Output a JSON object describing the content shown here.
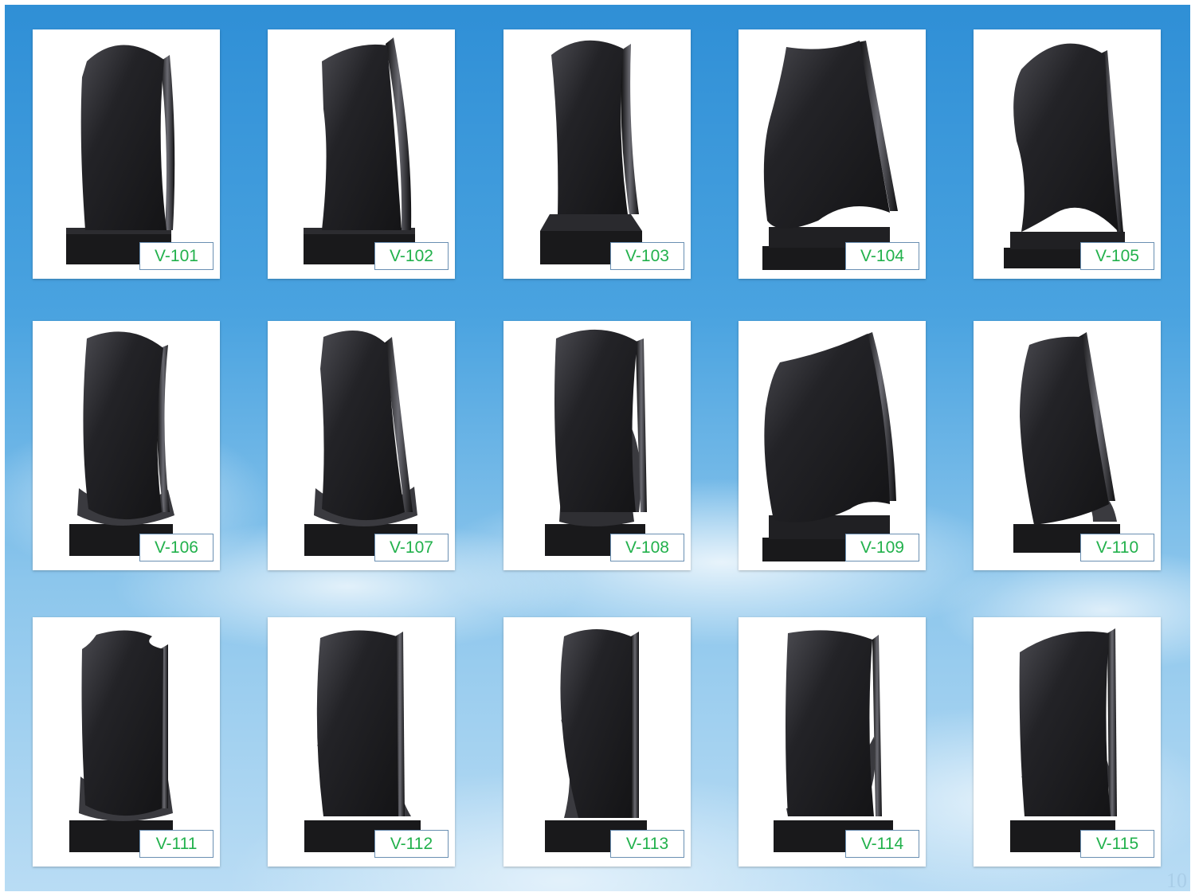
{
  "catalog": {
    "items": [
      {
        "code": "V-101",
        "icon": "headstone-icon"
      },
      {
        "code": "V-102",
        "icon": "headstone-icon"
      },
      {
        "code": "V-103",
        "icon": "headstone-icon"
      },
      {
        "code": "V-104",
        "icon": "headstone-icon"
      },
      {
        "code": "V-105",
        "icon": "headstone-icon"
      },
      {
        "code": "V-106",
        "icon": "headstone-icon"
      },
      {
        "code": "V-107",
        "icon": "headstone-icon"
      },
      {
        "code": "V-108",
        "icon": "headstone-icon"
      },
      {
        "code": "V-109",
        "icon": "headstone-icon"
      },
      {
        "code": "V-110",
        "icon": "headstone-icon"
      },
      {
        "code": "V-111",
        "icon": "headstone-icon"
      },
      {
        "code": "V-112",
        "icon": "headstone-icon"
      },
      {
        "code": "V-113",
        "icon": "headstone-icon"
      },
      {
        "code": "V-114",
        "icon": "headstone-icon"
      },
      {
        "code": "V-115",
        "icon": "headstone-icon"
      }
    ]
  },
  "page_number": "10",
  "colors": {
    "label_text": "#22b14c",
    "label_border": "#6a8fb2",
    "granite": "#1c1c1f",
    "sky_top": "#2f8fd6",
    "sky_bottom": "#b9dcf4"
  }
}
